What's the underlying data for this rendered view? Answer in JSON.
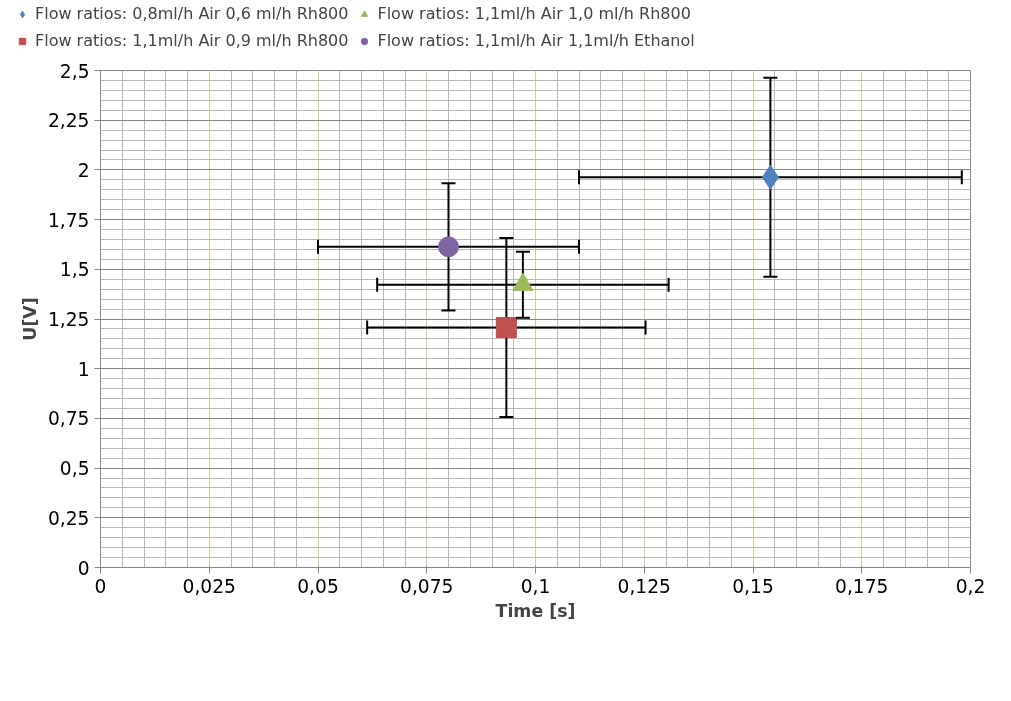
{
  "chart_data": {
    "type": "scatter",
    "xlabel": "Time [s]",
    "ylabel": "U[V]",
    "xlim": [
      0,
      0.2
    ],
    "ylim": [
      0,
      2.5
    ],
    "xticks": [
      0,
      {
        "value": 0.025,
        "label": "0,025"
      },
      {
        "value": 0.05,
        "label": "0,05"
      },
      {
        "value": 0.075,
        "label": "0,075"
      },
      {
        "value": 0.1,
        "label": "0,1"
      },
      {
        "value": 0.125,
        "label": "0,125"
      },
      {
        "value": 0.15,
        "label": "0,15"
      },
      {
        "value": 0.175,
        "label": "0,175"
      },
      {
        "value": 0.2,
        "label": "0,2"
      }
    ],
    "yticks": [
      0,
      {
        "value": 0.25,
        "label": "0,25"
      },
      {
        "value": 0.5,
        "label": "0,5"
      },
      {
        "value": 0.75,
        "label": "0,75"
      },
      1,
      {
        "value": 1.25,
        "label": "1,25"
      },
      {
        "value": 1.5,
        "label": "1,5"
      },
      {
        "value": 1.75,
        "label": "1,75"
      },
      2,
      {
        "value": 2.25,
        "label": "2,25"
      },
      {
        "value": 2.5,
        "label": "2,5"
      }
    ],
    "grid": true,
    "legend": "top",
    "series": [
      {
        "name": "Flow ratios: 0,8ml/h Air 0,6 ml/h Rh800",
        "color": "#4f81bd",
        "marker": "diamond",
        "x": [
          0.154
        ],
        "values": [
          1.963
        ],
        "errors": [
          0.5
        ],
        "xerrors": [
          0.044
        ]
      },
      {
        "name": "Flow ratios: 1,1ml/h Air 0,9 ml/h Rh800",
        "color": "#c0504d",
        "marker": "square",
        "x": [
          0.0933
        ],
        "values": [
          1.207
        ],
        "errors": [
          0.45
        ],
        "xerrors": [
          0.032
        ]
      },
      {
        "name": "Flow ratios: 1,1ml/h Air 1,0 ml/h Rh800",
        "color": "#9bbb59",
        "marker": "triangle",
        "x": [
          0.0971
        ],
        "values": [
          1.422
        ],
        "errors": [
          0.166
        ],
        "xerrors": [
          0.0335
        ]
      },
      {
        "name": "Flow ratios: 1,1ml/h Air 1,1ml/h Ethanol",
        "color": "#8064a2",
        "marker": "circle",
        "x": [
          0.08
        ],
        "values": [
          1.613
        ],
        "errors": [
          0.32
        ],
        "xerrors": [
          0.03
        ]
      }
    ]
  }
}
